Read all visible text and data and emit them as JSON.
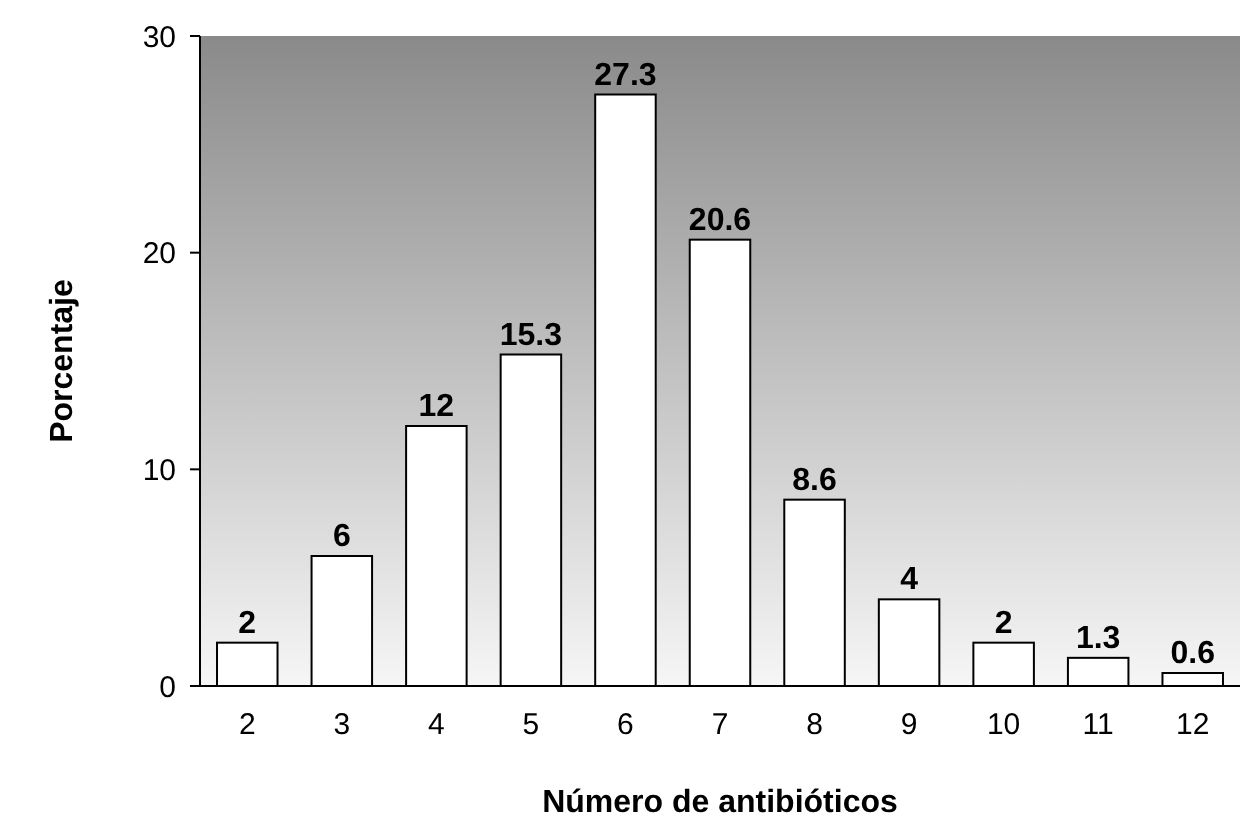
{
  "chart_data": {
    "type": "bar",
    "xlabel": "Número de antibióticos",
    "ylabel": "Porcentaje",
    "categories": [
      "2",
      "3",
      "4",
      "5",
      "6",
      "7",
      "8",
      "9",
      "10",
      "11",
      "12"
    ],
    "values": [
      2,
      6,
      12,
      15.3,
      27.3,
      20.6,
      8.6,
      4,
      2,
      1.3,
      0.6
    ],
    "color": "#ffffff",
    "ylim": [
      0,
      30
    ],
    "yticks": [
      0,
      10,
      20,
      30
    ],
    "data_labels": true
  }
}
